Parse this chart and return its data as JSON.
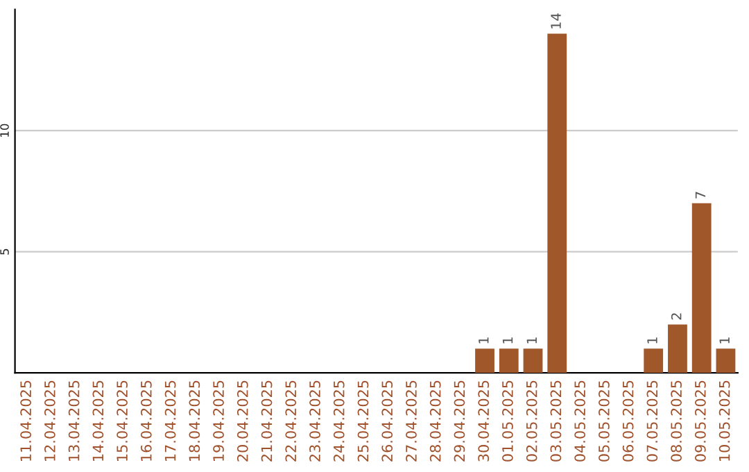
{
  "chart_data": {
    "type": "bar",
    "categories": [
      "11.04.2025",
      "12.04.2025",
      "13.04.2025",
      "14.04.2025",
      "15.04.2025",
      "16.04.2025",
      "17.04.2025",
      "18.04.2025",
      "19.04.2025",
      "20.04.2025",
      "21.04.2025",
      "22.04.2025",
      "23.04.2025",
      "24.04.2025",
      "25.04.2025",
      "26.04.2025",
      "27.04.2025",
      "28.04.2025",
      "29.04.2025",
      "30.04.2025",
      "01.05.2025",
      "02.05.2025",
      "03.05.2025",
      "04.05.2025",
      "05.05.2025",
      "06.05.2025",
      "07.05.2025",
      "08.05.2025",
      "09.05.2025",
      "10.05.2025"
    ],
    "values": [
      0,
      0,
      0,
      0,
      0,
      0,
      0,
      0,
      0,
      0,
      0,
      0,
      0,
      0,
      0,
      0,
      0,
      0,
      0,
      1,
      1,
      1,
      14,
      0,
      0,
      0,
      1,
      2,
      7,
      1
    ],
    "value_labels": [
      null,
      null,
      null,
      null,
      null,
      null,
      null,
      null,
      null,
      null,
      null,
      null,
      null,
      null,
      null,
      null,
      null,
      null,
      null,
      "1",
      "1",
      "1",
      "14",
      null,
      null,
      null,
      "1",
      "2",
      "7",
      "1"
    ],
    "color": "#a0582a",
    "ylim": [
      0,
      15
    ],
    "yticks": [
      5,
      10
    ],
    "grid": "y"
  }
}
